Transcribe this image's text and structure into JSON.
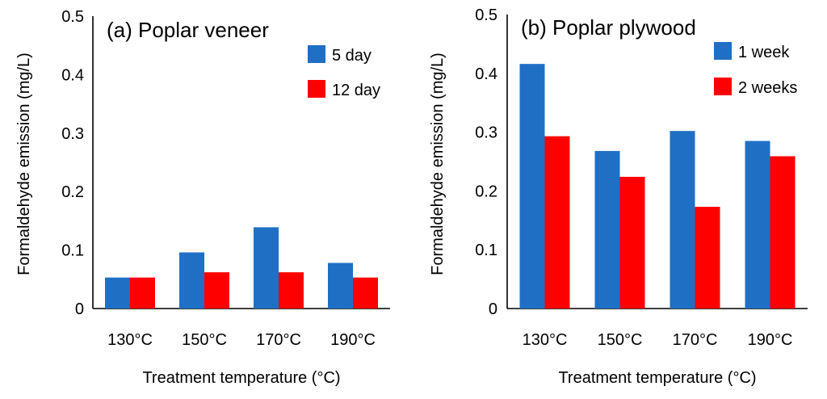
{
  "colors": {
    "series1": "#1f6fc5",
    "series2": "#ff0000"
  },
  "chart_data": [
    {
      "type": "bar",
      "title": "(a) Poplar veneer",
      "xlabel": "Treatment temperature (°C)",
      "ylabel": "Formaldehyde emission (mg/L)",
      "categories": [
        "130°C",
        "150°C",
        "170°C",
        "190°C"
      ],
      "ylim": [
        0,
        0.5
      ],
      "yticks": [
        "0",
        "0.1",
        "0.2",
        "0.3",
        "0.4",
        "0.5"
      ],
      "legend_position": "top-right",
      "series": [
        {
          "name": "5 day",
          "values": [
            0.053,
            0.096,
            0.139,
            0.078
          ]
        },
        {
          "name": "12 day",
          "values": [
            0.053,
            0.062,
            0.062,
            0.053
          ]
        }
      ]
    },
    {
      "type": "bar",
      "title": "(b) Poplar plywood",
      "xlabel": "Treatment temperature (°C)",
      "ylabel": "Formaldehyde emission (mg/L)",
      "categories": [
        "130°C",
        "150°C",
        "170°C",
        "190°C"
      ],
      "ylim": [
        0,
        0.5
      ],
      "yticks": [
        "0",
        "0.1",
        "0.2",
        "0.3",
        "0.4",
        "0.5"
      ],
      "legend_position": "top-right",
      "series": [
        {
          "name": "1 week",
          "values": [
            0.416,
            0.268,
            0.302,
            0.285
          ]
        },
        {
          "name": "2 weeks",
          "values": [
            0.293,
            0.224,
            0.173,
            0.259
          ]
        }
      ]
    }
  ]
}
